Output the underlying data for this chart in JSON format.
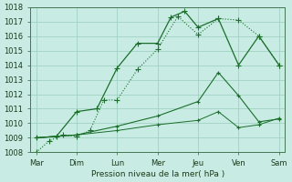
{
  "background_color": "#c8ece4",
  "grid_color": "#99ccbb",
  "line_color": "#1a6e2a",
  "xlabels": [
    "Mar",
    "Dim",
    "Lun",
    "Mer",
    "Jeu",
    "Ven",
    "Sam"
  ],
  "xlabel": "Pression niveau de la mer( hPa )",
  "ylim": [
    1008,
    1018
  ],
  "yticks": [
    1008,
    1009,
    1010,
    1011,
    1012,
    1013,
    1014,
    1015,
    1016,
    1017,
    1018
  ],
  "series": [
    {
      "x": [
        0,
        0.33,
        0.67,
        1.0,
        1.33,
        1.67,
        2.0,
        2.5,
        3.0,
        3.5,
        4.0,
        4.5,
        5.0,
        5.5,
        6.0
      ],
      "y": [
        1008.0,
        1008.8,
        1009.2,
        1009.1,
        1009.5,
        1011.6,
        1011.6,
        1013.7,
        1015.1,
        1017.35,
        1016.1,
        1017.2,
        1017.1,
        1016.0,
        1014.0
      ],
      "linestyle": "dotted",
      "marker": "+",
      "markersize": 4,
      "linewidth": 0.8
    },
    {
      "x": [
        0,
        0.5,
        1.0,
        1.5,
        2.0,
        2.5,
        3.0,
        3.33,
        3.67,
        4.0,
        4.5,
        5.0,
        5.5,
        6.0
      ],
      "y": [
        1009.0,
        1009.1,
        1010.8,
        1011.0,
        1013.8,
        1015.5,
        1015.5,
        1017.3,
        1017.7,
        1016.6,
        1017.2,
        1014.0,
        1016.0,
        1014.0
      ],
      "linestyle": "solid",
      "marker": "+",
      "markersize": 4,
      "linewidth": 0.9
    },
    {
      "x": [
        0,
        1.0,
        2.0,
        3.0,
        4.0,
        4.5,
        5.0,
        5.5,
        6.0
      ],
      "y": [
        1009.0,
        1009.2,
        1009.8,
        1010.5,
        1011.5,
        1013.5,
        1011.9,
        1010.1,
        1010.3
      ],
      "linestyle": "solid",
      "marker": "+",
      "markersize": 3.5,
      "linewidth": 0.8
    },
    {
      "x": [
        0,
        1.0,
        2.0,
        3.0,
        4.0,
        4.5,
        5.0,
        5.5,
        6.0
      ],
      "y": [
        1009.0,
        1009.2,
        1009.5,
        1009.9,
        1010.2,
        1010.8,
        1009.7,
        1009.9,
        1010.35
      ],
      "linestyle": "solid",
      "marker": "+",
      "markersize": 3,
      "linewidth": 0.7
    }
  ]
}
